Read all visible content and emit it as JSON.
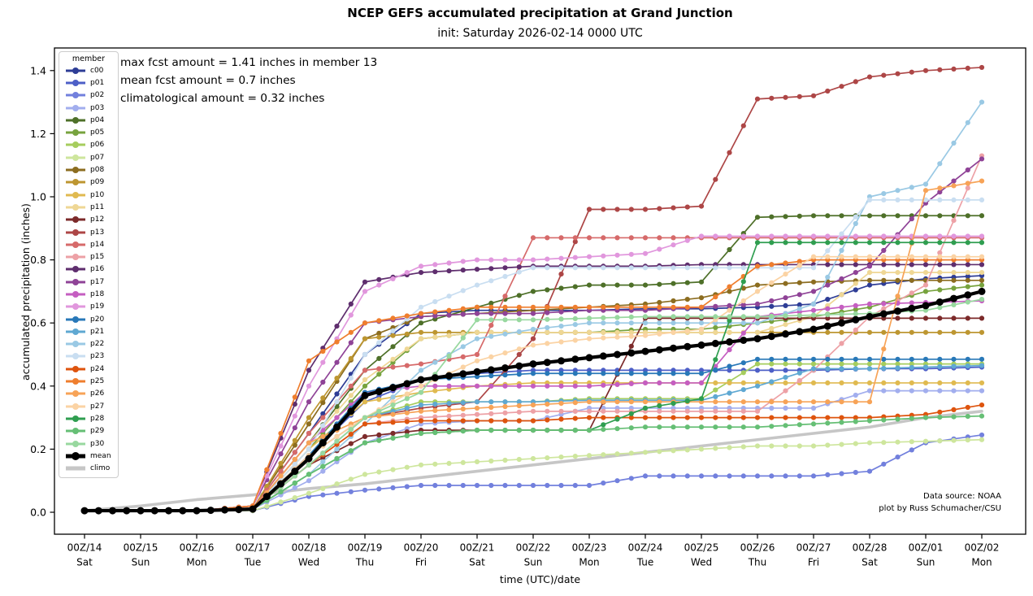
{
  "title": "NCEP GEFS accumulated precipitation at Grand Junction",
  "subtitle": "init: Saturday 2026-02-14 0000 UTC",
  "annotations": {
    "line1": "max fcst amount = 1.41 inches in member 13",
    "line2": "mean fcst amount = 0.7 inches",
    "line3": "climatological amount = 0.32 inches"
  },
  "credits": {
    "line1": "Data source: NOAA",
    "line2": "plot by Russ Schumacher/CSU"
  },
  "axes": {
    "xlabel": "time (UTC)/date",
    "ylabel": "accumulated precipitation (inches)",
    "yticks": [
      "0.0",
      "0.2",
      "0.4",
      "0.6",
      "0.8",
      "1.0",
      "1.2",
      "1.4"
    ],
    "ytick_values": [
      0.0,
      0.2,
      0.4,
      0.6,
      0.8,
      1.0,
      1.2,
      1.4
    ]
  },
  "legend": {
    "title": "member"
  },
  "chart_data": {
    "type": "line",
    "title": "NCEP GEFS accumulated precipitation at Grand Junction",
    "x_unit": "days since 2026-02-14 0000 UTC (points every 24 h, markers 6-hourly)",
    "x": [
      0,
      1,
      2,
      3,
      4,
      5,
      6,
      7,
      8,
      9,
      10,
      11,
      12,
      13,
      14,
      15,
      16
    ],
    "x_ticklabels": [
      [
        "00Z/14",
        "Sat"
      ],
      [
        "00Z/15",
        "Sun"
      ],
      [
        "00Z/16",
        "Mon"
      ],
      [
        "00Z/17",
        "Tue"
      ],
      [
        "00Z/18",
        "Wed"
      ],
      [
        "00Z/19",
        "Thu"
      ],
      [
        "00Z/20",
        "Fri"
      ],
      [
        "00Z/21",
        "Sat"
      ],
      [
        "00Z/22",
        "Sun"
      ],
      [
        "00Z/23",
        "Mon"
      ],
      [
        "00Z/24",
        "Tue"
      ],
      [
        "00Z/25",
        "Wed"
      ],
      [
        "00Z/26",
        "Thu"
      ],
      [
        "00Z/27",
        "Fri"
      ],
      [
        "00Z/28",
        "Sat"
      ],
      [
        "00Z/01",
        "Sun"
      ],
      [
        "00Z/02",
        "Mon"
      ]
    ],
    "ylim": [
      -0.07,
      1.48
    ],
    "grid": false,
    "legend_position": "upper left",
    "series": [
      {
        "name": "c00",
        "kind": "member",
        "color": "#2e3d96",
        "values": [
          0.005,
          0.005,
          0.005,
          0.01,
          0.25,
          0.5,
          0.63,
          0.64,
          0.64,
          0.64,
          0.645,
          0.645,
          0.65,
          0.66,
          0.72,
          0.74,
          0.75
        ]
      },
      {
        "name": "p01",
        "kind": "member",
        "color": "#4d5fc7",
        "values": [
          0.005,
          0.005,
          0.005,
          0.01,
          0.18,
          0.35,
          0.42,
          0.44,
          0.45,
          0.45,
          0.45,
          0.45,
          0.45,
          0.45,
          0.455,
          0.455,
          0.46
        ]
      },
      {
        "name": "p02",
        "kind": "member",
        "color": "#7280dd",
        "values": [
          0.005,
          0.005,
          0.005,
          0.005,
          0.05,
          0.07,
          0.085,
          0.085,
          0.085,
          0.085,
          0.115,
          0.115,
          0.115,
          0.115,
          0.13,
          0.22,
          0.245
        ]
      },
      {
        "name": "p03",
        "kind": "member",
        "color": "#a2aeee",
        "values": [
          0.005,
          0.005,
          0.005,
          0.01,
          0.1,
          0.22,
          0.28,
          0.29,
          0.29,
          0.33,
          0.33,
          0.33,
          0.33,
          0.33,
          0.385,
          0.385,
          0.385
        ]
      },
      {
        "name": "p04",
        "kind": "member",
        "color": "#4e7029",
        "values": [
          0.005,
          0.005,
          0.005,
          0.01,
          0.22,
          0.45,
          0.6,
          0.65,
          0.7,
          0.72,
          0.72,
          0.73,
          0.935,
          0.94,
          0.94,
          0.94,
          0.94
        ]
      },
      {
        "name": "p05",
        "kind": "member",
        "color": "#77a33e",
        "values": [
          0.005,
          0.005,
          0.005,
          0.01,
          0.2,
          0.4,
          0.55,
          0.57,
          0.57,
          0.57,
          0.58,
          0.58,
          0.6,
          0.62,
          0.65,
          0.7,
          0.72
        ]
      },
      {
        "name": "p06",
        "kind": "member",
        "color": "#a6cd5e",
        "values": [
          0.005,
          0.005,
          0.005,
          0.01,
          0.15,
          0.3,
          0.35,
          0.35,
          0.35,
          0.36,
          0.36,
          0.36,
          0.47,
          0.47,
          0.47,
          0.47,
          0.47
        ]
      },
      {
        "name": "p07",
        "kind": "member",
        "color": "#cee69d",
        "values": [
          0.005,
          0.005,
          0.005,
          0.005,
          0.06,
          0.12,
          0.15,
          0.16,
          0.17,
          0.18,
          0.19,
          0.2,
          0.21,
          0.21,
          0.22,
          0.225,
          0.23
        ]
      },
      {
        "name": "p08",
        "kind": "member",
        "color": "#8c6d20",
        "values": [
          0.005,
          0.005,
          0.005,
          0.01,
          0.28,
          0.55,
          0.62,
          0.63,
          0.64,
          0.65,
          0.66,
          0.68,
          0.72,
          0.73,
          0.735,
          0.735,
          0.735
        ]
      },
      {
        "name": "p09",
        "kind": "member",
        "color": "#bd9631",
        "values": [
          0.005,
          0.005,
          0.005,
          0.01,
          0.3,
          0.55,
          0.57,
          0.57,
          0.57,
          0.57,
          0.57,
          0.57,
          0.57,
          0.57,
          0.57,
          0.57,
          0.57
        ]
      },
      {
        "name": "p10",
        "kind": "member",
        "color": "#e0ba50",
        "values": [
          0.005,
          0.005,
          0.005,
          0.01,
          0.2,
          0.35,
          0.38,
          0.4,
          0.41,
          0.41,
          0.41,
          0.41,
          0.41,
          0.41,
          0.41,
          0.41,
          0.41
        ]
      },
      {
        "name": "p11",
        "kind": "member",
        "color": "#efd795",
        "values": [
          0.005,
          0.005,
          0.005,
          0.01,
          0.22,
          0.42,
          0.55,
          0.57,
          0.57,
          0.57,
          0.57,
          0.57,
          0.57,
          0.62,
          0.76,
          0.76,
          0.76
        ]
      },
      {
        "name": "p12",
        "kind": "member",
        "color": "#7c2a2a",
        "values": [
          0.005,
          0.005,
          0.005,
          0.01,
          0.15,
          0.24,
          0.26,
          0.26,
          0.26,
          0.26,
          0.615,
          0.615,
          0.615,
          0.615,
          0.615,
          0.615,
          0.615
        ]
      },
      {
        "name": "p13",
        "kind": "member",
        "color": "#ad4646",
        "values": [
          0.005,
          0.005,
          0.005,
          0.01,
          0.18,
          0.3,
          0.33,
          0.35,
          0.55,
          0.96,
          0.96,
          0.97,
          1.31,
          1.32,
          1.38,
          1.4,
          1.41
        ]
      },
      {
        "name": "p14",
        "kind": "member",
        "color": "#d66a6a",
        "values": [
          0.005,
          0.005,
          0.005,
          0.01,
          0.25,
          0.45,
          0.47,
          0.5,
          0.87,
          0.87,
          0.87,
          0.87,
          0.87,
          0.87,
          0.87,
          0.87,
          0.87
        ]
      },
      {
        "name": "p15",
        "kind": "member",
        "color": "#eda1a6",
        "values": [
          0.005,
          0.005,
          0.005,
          0.01,
          0.15,
          0.28,
          0.3,
          0.31,
          0.32,
          0.32,
          0.32,
          0.32,
          0.32,
          0.45,
          0.62,
          0.72,
          1.13
        ]
      },
      {
        "name": "p16",
        "kind": "member",
        "color": "#5f2e6e",
        "values": [
          0.005,
          0.005,
          0.005,
          0.02,
          0.45,
          0.73,
          0.76,
          0.77,
          0.78,
          0.78,
          0.78,
          0.785,
          0.785,
          0.785,
          0.785,
          0.785,
          0.785
        ]
      },
      {
        "name": "p17",
        "kind": "member",
        "color": "#8f4397",
        "values": [
          0.005,
          0.005,
          0.005,
          0.02,
          0.35,
          0.6,
          0.62,
          0.63,
          0.63,
          0.64,
          0.64,
          0.65,
          0.66,
          0.7,
          0.78,
          0.98,
          1.12
        ]
      },
      {
        "name": "p18",
        "kind": "member",
        "color": "#c55ec1",
        "values": [
          0.005,
          0.005,
          0.005,
          0.01,
          0.22,
          0.38,
          0.4,
          0.4,
          0.4,
          0.4,
          0.41,
          0.41,
          0.62,
          0.64,
          0.66,
          0.665,
          0.67
        ]
      },
      {
        "name": "p19",
        "kind": "member",
        "color": "#e197dd",
        "values": [
          0.005,
          0.005,
          0.005,
          0.02,
          0.4,
          0.7,
          0.78,
          0.8,
          0.8,
          0.81,
          0.82,
          0.875,
          0.875,
          0.875,
          0.875,
          0.875,
          0.875
        ]
      },
      {
        "name": "p20",
        "kind": "member",
        "color": "#2878b8",
        "values": [
          0.005,
          0.005,
          0.005,
          0.01,
          0.18,
          0.38,
          0.42,
          0.43,
          0.44,
          0.44,
          0.44,
          0.44,
          0.485,
          0.485,
          0.485,
          0.485,
          0.485
        ]
      },
      {
        "name": "p21",
        "kind": "member",
        "color": "#5fa8d2",
        "values": [
          0.005,
          0.005,
          0.005,
          0.01,
          0.15,
          0.3,
          0.34,
          0.35,
          0.35,
          0.355,
          0.355,
          0.355,
          0.4,
          0.455,
          0.455,
          0.46,
          0.465
        ]
      },
      {
        "name": "p22",
        "kind": "member",
        "color": "#9ac9e4",
        "values": [
          0.005,
          0.005,
          0.005,
          0.01,
          0.12,
          0.28,
          0.45,
          0.55,
          0.58,
          0.6,
          0.6,
          0.6,
          0.6,
          0.66,
          1.0,
          1.04,
          1.3
        ]
      },
      {
        "name": "p23",
        "kind": "member",
        "color": "#c9def1",
        "values": [
          0.005,
          0.005,
          0.005,
          0.01,
          0.2,
          0.5,
          0.65,
          0.72,
          0.775,
          0.775,
          0.775,
          0.775,
          0.775,
          0.775,
          0.99,
          0.99,
          0.99
        ]
      },
      {
        "name": "p24",
        "kind": "member",
        "color": "#de540e",
        "values": [
          0.005,
          0.005,
          0.005,
          0.01,
          0.15,
          0.28,
          0.29,
          0.29,
          0.29,
          0.3,
          0.3,
          0.3,
          0.3,
          0.3,
          0.3,
          0.31,
          0.34
        ]
      },
      {
        "name": "p25",
        "kind": "member",
        "color": "#ef7e2e",
        "values": [
          0.005,
          0.005,
          0.005,
          0.02,
          0.48,
          0.6,
          0.63,
          0.65,
          0.65,
          0.65,
          0.65,
          0.65,
          0.78,
          0.8,
          0.8,
          0.8,
          0.8
        ]
      },
      {
        "name": "p26",
        "kind": "member",
        "color": "#f7a357",
        "values": [
          0.005,
          0.005,
          0.005,
          0.01,
          0.22,
          0.3,
          0.32,
          0.33,
          0.34,
          0.35,
          0.35,
          0.35,
          0.35,
          0.35,
          0.35,
          1.02,
          1.05
        ]
      },
      {
        "name": "p27",
        "kind": "member",
        "color": "#fbd3a4",
        "values": [
          0.005,
          0.005,
          0.005,
          0.01,
          0.18,
          0.3,
          0.4,
          0.48,
          0.53,
          0.55,
          0.56,
          0.58,
          0.7,
          0.81,
          0.81,
          0.81,
          0.81
        ]
      },
      {
        "name": "p28",
        "kind": "member",
        "color": "#2f9e50",
        "values": [
          0.005,
          0.005,
          0.005,
          0.01,
          0.12,
          0.22,
          0.25,
          0.26,
          0.26,
          0.26,
          0.33,
          0.36,
          0.855,
          0.855,
          0.855,
          0.855,
          0.855
        ]
      },
      {
        "name": "p29",
        "kind": "member",
        "color": "#66bf75",
        "values": [
          0.005,
          0.005,
          0.005,
          0.01,
          0.12,
          0.22,
          0.25,
          0.26,
          0.26,
          0.26,
          0.27,
          0.27,
          0.27,
          0.28,
          0.29,
          0.3,
          0.305
        ]
      },
      {
        "name": "p30",
        "kind": "member",
        "color": "#98d89f",
        "values": [
          0.005,
          0.005,
          0.005,
          0.01,
          0.15,
          0.3,
          0.38,
          0.61,
          0.61,
          0.615,
          0.62,
          0.62,
          0.62,
          0.625,
          0.63,
          0.64,
          0.675
        ]
      },
      {
        "name": "mean",
        "kind": "mean",
        "color": "#000000",
        "values": [
          0.005,
          0.005,
          0.005,
          0.01,
          0.17,
          0.37,
          0.42,
          0.445,
          0.47,
          0.49,
          0.51,
          0.53,
          0.55,
          0.58,
          0.62,
          0.655,
          0.7
        ]
      },
      {
        "name": "climo",
        "kind": "climo",
        "color": "#c6c6c6",
        "values": [
          0.005,
          0.02,
          0.04,
          0.055,
          0.075,
          0.09,
          0.11,
          0.13,
          0.15,
          0.17,
          0.19,
          0.21,
          0.23,
          0.25,
          0.27,
          0.3,
          0.32
        ]
      }
    ]
  }
}
